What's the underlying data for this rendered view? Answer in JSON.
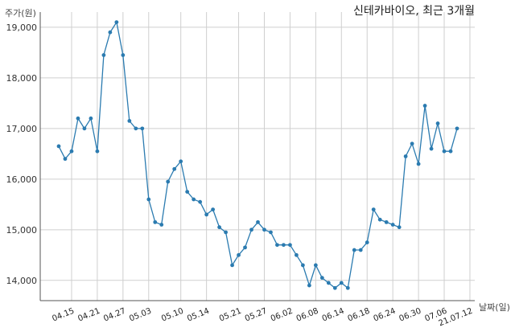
{
  "chart_data": {
    "type": "line",
    "title": "신테카바이오, 최근 3개월",
    "ylabel": "주가(원)",
    "xlabel": "날짜(일)",
    "ylim": [
      13600,
      19300
    ],
    "yticks": [
      14000,
      15000,
      16000,
      17000,
      18000,
      19000
    ],
    "ytick_labels": [
      "14,000",
      "15,000",
      "16,000",
      "17,000",
      "18,000",
      "19,000"
    ],
    "xtick_labels": [
      "04.15",
      "04.21",
      "04.27",
      "05.03",
      "05.10",
      "05.14",
      "05.21",
      "05.27",
      "06.02",
      "06.08",
      "06.14",
      "06.18",
      "06.24",
      "06.30",
      "07.06",
      "21.07.12"
    ],
    "xtick_indices": [
      2,
      6,
      10,
      14,
      19,
      23,
      28,
      32,
      36,
      40,
      44,
      48,
      52,
      56,
      60,
      64
    ],
    "grid": true,
    "color": "#2b7bb0",
    "values": [
      16650,
      16400,
      16550,
      17200,
      17000,
      17200,
      16550,
      18450,
      18900,
      19100,
      18450,
      17150,
      17000,
      17000,
      15600,
      15150,
      15100,
      15950,
      16200,
      16350,
      15750,
      15600,
      15550,
      15300,
      15400,
      15050,
      14950,
      14300,
      14500,
      14650,
      15000,
      15150,
      15000,
      14950,
      14700,
      14700,
      14700,
      14500,
      14300,
      13900,
      14300,
      14050,
      13950,
      13850,
      13950,
      13850,
      14600,
      14600,
      14750,
      15400,
      15200,
      15150,
      15100,
      15050,
      16450,
      16700,
      16300,
      17450,
      16600,
      17100,
      16550,
      16550,
      17000
    ]
  }
}
